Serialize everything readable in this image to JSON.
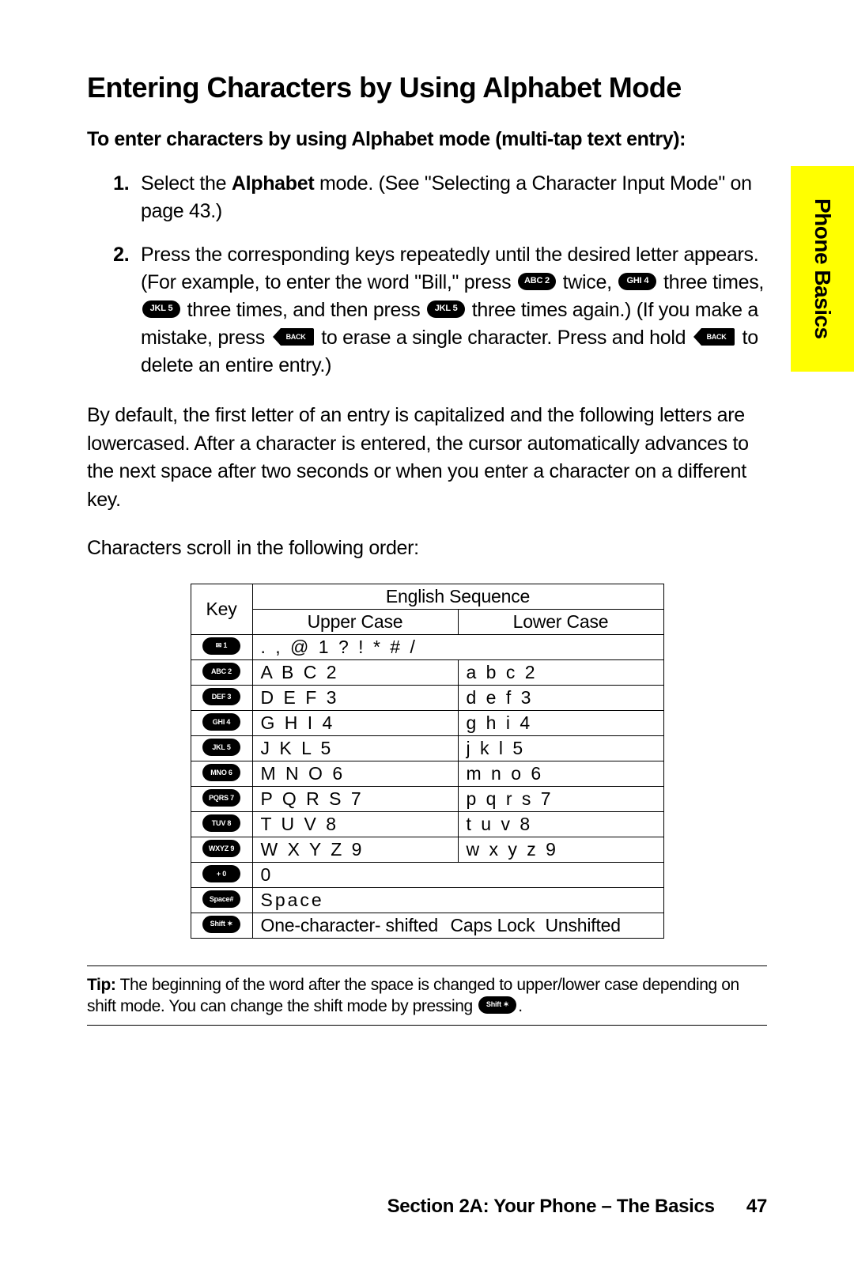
{
  "colors": {
    "tab_bg": "#ffff00",
    "text": "#000000",
    "keycap_bg": "#000000",
    "keycap_text": "#ffffff",
    "rule": "#000000",
    "page_bg": "#ffffff"
  },
  "typography": {
    "heading_fontsize_pt": 27,
    "body_fontsize_pt": 19,
    "table_fontsize_pt": 17,
    "tip_fontsize_pt": 16,
    "tab_fontsize_pt": 21
  },
  "sidebar": {
    "label": "Phone Basics"
  },
  "heading": "Entering Characters by Using Alphabet Mode",
  "subhead": "To enter characters by using Alphabet mode (multi-tap text entry):",
  "steps": {
    "s1_a": "Select the ",
    "s1_bold": "Alphabet",
    "s1_b": " mode. (See \"Selecting a Character Input Mode\" on page 43.)",
    "s2_a": "Press the corresponding keys repeatedly until the desired letter appears. (For example, to enter the word \"Bill,\" press ",
    "s2_b": " twice, ",
    "s2_c": " three times, ",
    "s2_d": " three times, and then press ",
    "s2_e": " three times again.) (If you make a mistake, press ",
    "s2_f": " to erase a single character. Press and hold ",
    "s2_g": " to delete an entire entry.)"
  },
  "keys": {
    "abc2": "ABC 2",
    "ghi4": "GHI 4",
    "jkl5": "JKL 5",
    "back": "BACK",
    "env1": "✉ 1",
    "def3": "DEF 3",
    "mno6": "MNO 6",
    "pqrs7": "PQRS 7",
    "tuv8": "TUV 8",
    "wxyz9": "WXYZ 9",
    "plus0": "+ 0",
    "spacehash": "Space#",
    "shiftstar": "Shift ✶"
  },
  "para1": "By default, the first letter of an entry is capitalized and the following letters are lowercased. After a character is entered, the cursor automatically advances to the next space after two seconds or when you enter a character on a different key.",
  "para2": "Characters scroll in the following order:",
  "table": {
    "key_header": "Key",
    "seq_header": "English Sequence",
    "upper_header": "Upper Case",
    "lower_header": "Lower Case",
    "rows": [
      {
        "key": "env1",
        "upper": ". , @ 1 ? ! * # /",
        "lower": "",
        "span": true
      },
      {
        "key": "abc2",
        "upper": "A B C 2",
        "lower": "a b c 2"
      },
      {
        "key": "def3",
        "upper": "D E F 3",
        "lower": "d e f 3"
      },
      {
        "key": "ghi4",
        "upper": "G H I 4",
        "lower": "g h i 4"
      },
      {
        "key": "jkl5",
        "upper": "J K L 5",
        "lower": "j k l 5"
      },
      {
        "key": "mno6",
        "upper": "M N O 6",
        "lower": "m n o 6"
      },
      {
        "key": "pqrs7",
        "upper": "P Q R S 7",
        "lower": "p q r s 7"
      },
      {
        "key": "tuv8",
        "upper": "T U V 8",
        "lower": "t u v 8"
      },
      {
        "key": "wxyz9",
        "upper": "W X Y Z 9",
        "lower": "w x y z 9"
      },
      {
        "key": "plus0",
        "upper": "0",
        "lower": "",
        "span": true
      },
      {
        "key": "spacehash",
        "upper": "Space",
        "lower": "",
        "span": true
      },
      {
        "key": "shiftstar",
        "shift_row": true,
        "c1": "One-character- shifted",
        "c2": "Caps Lock",
        "c3": "Unshifted"
      }
    ]
  },
  "tip": {
    "label": "Tip:",
    "text_a": " The beginning of the word after the space is changed to upper/lower case depending on shift mode. You can change the shift mode by pressing ",
    "text_b": "."
  },
  "footer": {
    "section": "Section 2A: Your Phone – The Basics",
    "page": "47"
  }
}
